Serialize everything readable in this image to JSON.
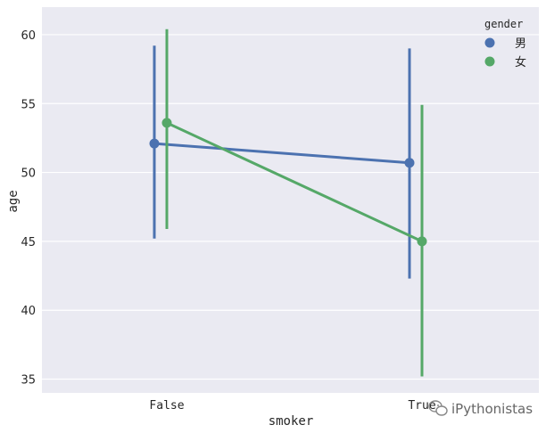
{
  "chart_data": {
    "type": "point",
    "categories": [
      "False",
      "True"
    ],
    "xlabel": "smoker",
    "ylabel": "age",
    "ylim": [
      34,
      62
    ],
    "yticks": [
      35,
      40,
      45,
      50,
      55,
      60
    ],
    "legend": {
      "title": "gender",
      "placement": "top-right"
    },
    "series": [
      {
        "name": "男",
        "color": "#4c72b0",
        "values": [
          52.1,
          50.7
        ],
        "ci_low": [
          45.2,
          42.3
        ],
        "ci_high": [
          59.2,
          59.0
        ]
      },
      {
        "name": "女",
        "color": "#55a868",
        "values": [
          53.6,
          45.0
        ],
        "ci_low": [
          45.9,
          35.2
        ],
        "ci_high": [
          60.4,
          54.9
        ]
      }
    ],
    "grid": true
  },
  "watermark": "iPythonistas"
}
